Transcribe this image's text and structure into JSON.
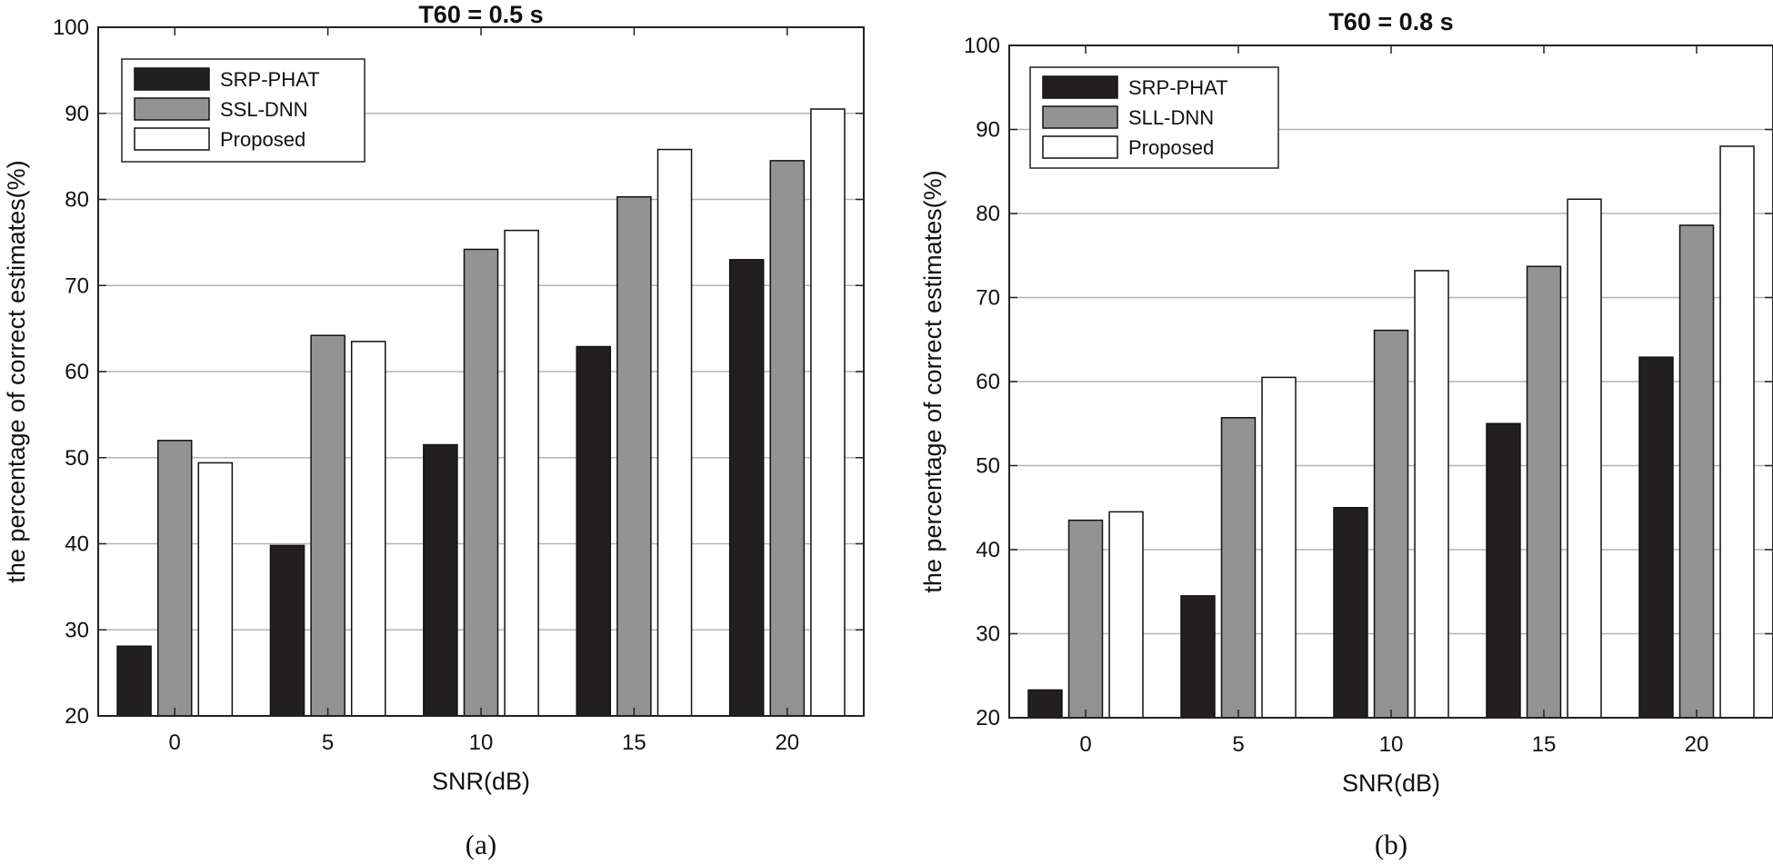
{
  "chart_data": [
    {
      "type": "bar",
      "title": "T60 = 0.5 s",
      "caption": "(a)",
      "xlabel": "SNR(dB)",
      "ylabel": "the percentage of correct estimates(%)",
      "categories": [
        "0",
        "5",
        "10",
        "15",
        "20"
      ],
      "ylim": [
        20,
        100
      ],
      "yticks": [
        "20",
        "30",
        "40",
        "50",
        "60",
        "70",
        "80",
        "90",
        "100"
      ],
      "grid": "horizontal",
      "legend_position": "top-left",
      "series": [
        {
          "name": "SRP-PHAT",
          "color": "#231f20",
          "values": [
            28.1,
            39.8,
            51.5,
            62.9,
            73.0
          ]
        },
        {
          "name": "SSL-DNN",
          "color": "#939393",
          "values": [
            52.0,
            64.2,
            74.2,
            80.3,
            84.5
          ]
        },
        {
          "name": "Proposed",
          "color": "#ffffff",
          "values": [
            49.4,
            63.5,
            76.4,
            85.8,
            90.5
          ]
        }
      ]
    },
    {
      "type": "bar",
      "title": "T60 = 0.8 s",
      "caption": "(b)",
      "xlabel": "SNR(dB)",
      "ylabel": "the percentage of correct estimates(%)",
      "categories": [
        "0",
        "5",
        "10",
        "15",
        "20"
      ],
      "ylim": [
        20,
        100
      ],
      "yticks": [
        "20",
        "30",
        "40",
        "50",
        "60",
        "70",
        "80",
        "90",
        "100"
      ],
      "grid": "horizontal",
      "legend_position": "top-left",
      "series": [
        {
          "name": "SRP-PHAT",
          "color": "#231f20",
          "values": [
            23.3,
            34.5,
            45.0,
            55.0,
            62.9
          ]
        },
        {
          "name": "SLL-DNN",
          "color": "#939393",
          "values": [
            43.5,
            55.7,
            66.1,
            73.7,
            78.6
          ]
        },
        {
          "name": "Proposed",
          "color": "#ffffff",
          "values": [
            44.5,
            60.5,
            73.2,
            81.7,
            88.0
          ]
        }
      ]
    }
  ]
}
